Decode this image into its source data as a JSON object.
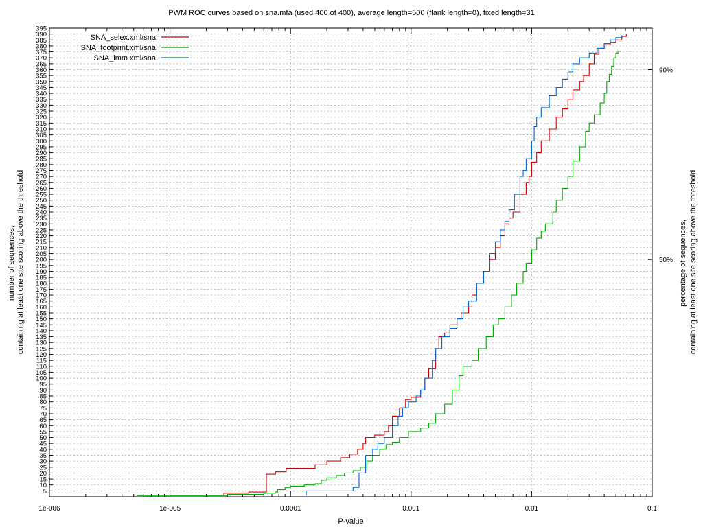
{
  "chart_data": {
    "type": "line",
    "title": "PWM ROC curves based on sna.mfa (used 400 of 400), average length=500 (flank length=0), fixed length=31",
    "xlabel": "P-value",
    "ylabel_lines": [
      "number of sequences,",
      "containing at least one site scoring above the threshold"
    ],
    "y2label_lines": [
      "percentage of sequences,",
      "containing at least one site scoring above the threshold"
    ],
    "xscale": "log",
    "xlim": [
      1e-06,
      0.1
    ],
    "ylim": [
      0,
      395
    ],
    "x_ticks": [
      {
        "value": 1e-06,
        "label": "1e-006"
      },
      {
        "value": 1e-05,
        "label": "1e-005"
      },
      {
        "value": 0.0001,
        "label": "0.0001"
      },
      {
        "value": 0.001,
        "label": "0.001"
      },
      {
        "value": 0.01,
        "label": "0.01"
      },
      {
        "value": 0.1,
        "label": "0.1"
      }
    ],
    "y_tick_step": 5,
    "y2_ticks": [
      {
        "value": 200,
        "label": "50%"
      },
      {
        "value": 360,
        "label": "90%"
      }
    ],
    "grid": true,
    "legend_position": "top-left",
    "series": [
      {
        "name": "SNA_selex.xml/sna",
        "color": "#cc0000",
        "points": [
          [
            2.8e-05,
            1
          ],
          [
            2.8e-05,
            3
          ],
          [
            4.5e-05,
            3
          ],
          [
            4.5e-05,
            4
          ],
          [
            6.3e-05,
            4
          ],
          [
            6.3e-05,
            19
          ],
          [
            7.5e-05,
            19
          ],
          [
            7.5e-05,
            21
          ],
          [
            9.2e-05,
            21
          ],
          [
            9.2e-05,
            24
          ],
          [
            0.00012,
            24
          ],
          [
            0.00016,
            27
          ],
          [
            0.0002,
            30
          ],
          [
            0.00026,
            33
          ],
          [
            0.00031,
            36
          ],
          [
            0.00036,
            40
          ],
          [
            0.0004,
            45
          ],
          [
            0.00042,
            50
          ],
          [
            0.0005,
            52
          ],
          [
            0.0006,
            55
          ],
          [
            0.00065,
            60
          ],
          [
            0.0007,
            68
          ],
          [
            0.0008,
            75
          ],
          [
            0.0009,
            82
          ],
          [
            0.001,
            84
          ],
          [
            0.0012,
            90
          ],
          [
            0.0013,
            100
          ],
          [
            0.0014,
            108
          ],
          [
            0.0016,
            125
          ],
          [
            0.0017,
            135
          ],
          [
            0.0019,
            138
          ],
          [
            0.0021,
            145
          ],
          [
            0.0024,
            150
          ],
          [
            0.0026,
            155
          ],
          [
            0.003,
            160
          ],
          [
            0.0032,
            170
          ],
          [
            0.0035,
            180
          ],
          [
            0.004,
            190
          ],
          [
            0.0045,
            200
          ],
          [
            0.005,
            210
          ],
          [
            0.0055,
            220
          ],
          [
            0.006,
            230
          ],
          [
            0.0065,
            235
          ],
          [
            0.007,
            240
          ],
          [
            0.008,
            255
          ],
          [
            0.009,
            265
          ],
          [
            0.0095,
            270
          ],
          [
            0.01,
            282
          ],
          [
            0.011,
            290
          ],
          [
            0.012,
            300
          ],
          [
            0.014,
            310
          ],
          [
            0.016,
            320
          ],
          [
            0.018,
            327
          ],
          [
            0.02,
            335
          ],
          [
            0.022,
            343
          ],
          [
            0.025,
            350
          ],
          [
            0.027,
            355
          ],
          [
            0.03,
            365
          ],
          [
            0.033,
            373
          ],
          [
            0.036,
            378
          ],
          [
            0.04,
            381
          ],
          [
            0.045,
            383
          ],
          [
            0.05,
            385
          ],
          [
            0.056,
            388
          ],
          [
            0.061,
            390
          ]
        ]
      },
      {
        "name": "SNA_footprint.xml/sna",
        "color": "#00aa00",
        "points": [
          [
            5.3e-06,
            1
          ],
          [
            1.5e-05,
            1
          ],
          [
            3e-05,
            2
          ],
          [
            4.5e-05,
            2
          ],
          [
            6e-05,
            3
          ],
          [
            7.5e-05,
            4
          ],
          [
            7.8e-05,
            6
          ],
          [
            9e-05,
            8
          ],
          [
            0.0001,
            9
          ],
          [
            0.00013,
            10
          ],
          [
            0.00016,
            11
          ],
          [
            0.00018,
            14
          ],
          [
            0.0002,
            16
          ],
          [
            0.00024,
            18
          ],
          [
            0.00028,
            20
          ],
          [
            0.00033,
            22
          ],
          [
            0.00038,
            25
          ],
          [
            0.00043,
            30
          ],
          [
            0.00048,
            35
          ],
          [
            0.00055,
            40
          ],
          [
            0.00062,
            44
          ],
          [
            0.0007,
            46
          ],
          [
            0.0008,
            50
          ],
          [
            0.00095,
            55
          ],
          [
            0.0012,
            58
          ],
          [
            0.0014,
            62
          ],
          [
            0.0016,
            70
          ],
          [
            0.0019,
            78
          ],
          [
            0.0022,
            90
          ],
          [
            0.0025,
            102
          ],
          [
            0.0027,
            110
          ],
          [
            0.0032,
            115
          ],
          [
            0.0036,
            125
          ],
          [
            0.0042,
            135
          ],
          [
            0.0048,
            145
          ],
          [
            0.0053,
            150
          ],
          [
            0.006,
            160
          ],
          [
            0.0068,
            170
          ],
          [
            0.0075,
            180
          ],
          [
            0.0085,
            190
          ],
          [
            0.009,
            197
          ],
          [
            0.01,
            208
          ],
          [
            0.011,
            218
          ],
          [
            0.012,
            224
          ],
          [
            0.013,
            230
          ],
          [
            0.015,
            240
          ],
          [
            0.016,
            250
          ],
          [
            0.018,
            260
          ],
          [
            0.02,
            270
          ],
          [
            0.022,
            283
          ],
          [
            0.025,
            295
          ],
          [
            0.028,
            308
          ],
          [
            0.03,
            315
          ],
          [
            0.033,
            322
          ],
          [
            0.037,
            332
          ],
          [
            0.04,
            340
          ],
          [
            0.042,
            350
          ],
          [
            0.044,
            356
          ],
          [
            0.046,
            363
          ],
          [
            0.048,
            370
          ],
          [
            0.05,
            374
          ],
          [
            0.052,
            376
          ]
        ]
      },
      {
        "name": "SNA_imm.xml/sna",
        "color": "#0066cc",
        "points": [
          [
            0.000135,
            1
          ],
          [
            0.000135,
            5
          ],
          [
            0.0003,
            5
          ],
          [
            0.00033,
            8
          ],
          [
            0.00037,
            14
          ],
          [
            0.00037,
            20
          ],
          [
            0.00042,
            20
          ],
          [
            0.00042,
            35
          ],
          [
            0.00048,
            40
          ],
          [
            0.00053,
            45
          ],
          [
            0.0006,
            50
          ],
          [
            0.0007,
            60
          ],
          [
            0.00078,
            68
          ],
          [
            0.00085,
            75
          ],
          [
            0.00095,
            80
          ],
          [
            0.0011,
            85
          ],
          [
            0.0012,
            90
          ],
          [
            0.0013,
            100
          ],
          [
            0.0015,
            115
          ],
          [
            0.0016,
            125
          ],
          [
            0.0018,
            135
          ],
          [
            0.0021,
            142
          ],
          [
            0.0024,
            150
          ],
          [
            0.0027,
            160
          ],
          [
            0.003,
            165
          ],
          [
            0.0035,
            180
          ],
          [
            0.004,
            190
          ],
          [
            0.0045,
            205
          ],
          [
            0.005,
            215
          ],
          [
            0.0055,
            225
          ],
          [
            0.006,
            232
          ],
          [
            0.0065,
            242
          ],
          [
            0.0072,
            255
          ],
          [
            0.008,
            270
          ],
          [
            0.0085,
            275
          ],
          [
            0.009,
            285
          ],
          [
            0.01,
            300
          ],
          [
            0.0105,
            312
          ],
          [
            0.011,
            320
          ],
          [
            0.012,
            328
          ],
          [
            0.014,
            338
          ],
          [
            0.016,
            345
          ],
          [
            0.018,
            352
          ],
          [
            0.02,
            358
          ],
          [
            0.022,
            365
          ],
          [
            0.025,
            370
          ],
          [
            0.03,
            374
          ],
          [
            0.035,
            378
          ],
          [
            0.04,
            382
          ],
          [
            0.045,
            385
          ],
          [
            0.05,
            387
          ],
          [
            0.056,
            389
          ]
        ]
      }
    ]
  }
}
